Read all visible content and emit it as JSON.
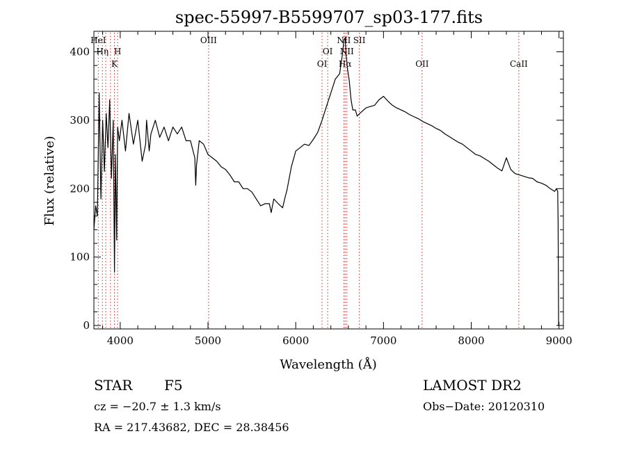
{
  "chart_data": {
    "type": "line",
    "title": "spec-55997-B5599707_sp03-177.fits",
    "xlabel": "Wavelength (Å)",
    "ylabel": "Flux (relative)",
    "xlim": [
      3700,
      9050
    ],
    "ylim": [
      -5,
      430
    ],
    "xticks": [
      {
        "v": 4000,
        "label": "4000"
      },
      {
        "v": 5000,
        "label": "5000"
      },
      {
        "v": 6000,
        "label": "6000"
      },
      {
        "v": 7000,
        "label": "7000"
      },
      {
        "v": 8000,
        "label": "8000"
      },
      {
        "v": 9000,
        "label": "9000"
      }
    ],
    "yticks": [
      {
        "v": 0,
        "label": "0"
      },
      {
        "v": 100,
        "label": "100"
      },
      {
        "v": 200,
        "label": "200"
      },
      {
        "v": 300,
        "label": "300"
      },
      {
        "v": 400,
        "label": "400"
      }
    ],
    "line_color": "#000000",
    "marker_color": "#cc2222",
    "grid": false,
    "series": [
      {
        "x": [
          3700,
          3720,
          3740,
          3760,
          3780,
          3800,
          3820,
          3840,
          3860,
          3880,
          3900,
          3920,
          3935,
          3945,
          3960,
          3970,
          3990,
          4020,
          4060,
          4100,
          4150,
          4200,
          4250,
          4290,
          4300,
          4330,
          4350,
          4400,
          4450,
          4500,
          4550,
          4600,
          4650,
          4700,
          4750,
          4800,
          4850,
          4860,
          4870,
          4900,
          4950,
          5000,
          5050,
          5100,
          5150,
          5200,
          5250,
          5300,
          5350,
          5400,
          5450,
          5500,
          5550,
          5600,
          5650,
          5700,
          5720,
          5750,
          5800,
          5850,
          5880,
          5900,
          5950,
          6000,
          6050,
          6100,
          6150,
          6200,
          6250,
          6300,
          6350,
          6400,
          6450,
          6500,
          6530,
          6550,
          6563,
          6575,
          6590,
          6610,
          6630,
          6650,
          6680,
          6700,
          6730,
          6800,
          6850,
          6900,
          6950,
          7000,
          7050,
          7100,
          7150,
          7200,
          7250,
          7300,
          7350,
          7400,
          7450,
          7500,
          7550,
          7600,
          7650,
          7700,
          7750,
          7800,
          7850,
          7900,
          7950,
          8000,
          8050,
          8100,
          8150,
          8200,
          8250,
          8300,
          8350,
          8400,
          8450,
          8500,
          8550,
          8600,
          8650,
          8700,
          8750,
          8800,
          8850,
          8900,
          8950,
          8970,
          8985,
          8990,
          8995
        ],
        "y": [
          140,
          175,
          160,
          340,
          185,
          300,
          225,
          310,
          260,
          330,
          215,
          300,
          78,
          250,
          125,
          290,
          270,
          300,
          255,
          310,
          265,
          300,
          240,
          265,
          300,
          255,
          280,
          300,
          275,
          290,
          270,
          290,
          280,
          290,
          270,
          270,
          245,
          205,
          235,
          270,
          265,
          250,
          245,
          240,
          232,
          228,
          220,
          210,
          210,
          200,
          200,
          195,
          185,
          175,
          178,
          178,
          165,
          185,
          178,
          172,
          188,
          198,
          232,
          255,
          260,
          265,
          263,
          272,
          282,
          300,
          320,
          340,
          360,
          368,
          395,
          418,
          420,
          395,
          375,
          358,
          330,
          315,
          315,
          306,
          310,
          318,
          320,
          322,
          330,
          335,
          328,
          322,
          318,
          315,
          312,
          308,
          305,
          302,
          298,
          295,
          292,
          288,
          285,
          280,
          276,
          272,
          268,
          265,
          260,
          255,
          250,
          248,
          244,
          240,
          235,
          230,
          226,
          245,
          228,
          222,
          220,
          218,
          216,
          215,
          210,
          208,
          205,
          200,
          196,
          200,
          196,
          150,
          0
        ]
      }
    ],
    "lines": [
      {
        "w": 3750,
        "label": "HeI",
        "row": 0
      },
      {
        "w": 3797,
        "label": "Hη",
        "row": 1
      },
      {
        "w": 3835,
        "label": "",
        "row": -1
      },
      {
        "w": 3889,
        "label": "",
        "row": -1
      },
      {
        "w": 3934,
        "label": "K",
        "row": 2
      },
      {
        "w": 3970,
        "label": "H",
        "row": 1
      },
      {
        "w": 5007,
        "label": "OIII",
        "row": 0
      },
      {
        "w": 6300,
        "label": "OI",
        "row": 2
      },
      {
        "w": 6364,
        "label": "OI",
        "row": 1
      },
      {
        "w": 6548,
        "label": "NII",
        "row": 0
      },
      {
        "w": 6563,
        "label": "Hα",
        "row": 2
      },
      {
        "w": 6583,
        "label": "NII",
        "row": 1
      },
      {
        "w": 6725,
        "label": "SII",
        "row": 0
      },
      {
        "w": 7440,
        "label": "OII",
        "row": 2
      },
      {
        "w": 8542,
        "label": "CaII",
        "row": 2
      }
    ]
  },
  "info": {
    "obj_type": "STAR",
    "subclass": "F5",
    "survey": "LAMOST DR2",
    "cz": "cz = −20.7 ± 1.3 km/s",
    "obs_date": "Obs−Date: 20120310",
    "coords": "RA = 217.43682, DEC =  28.38456"
  }
}
